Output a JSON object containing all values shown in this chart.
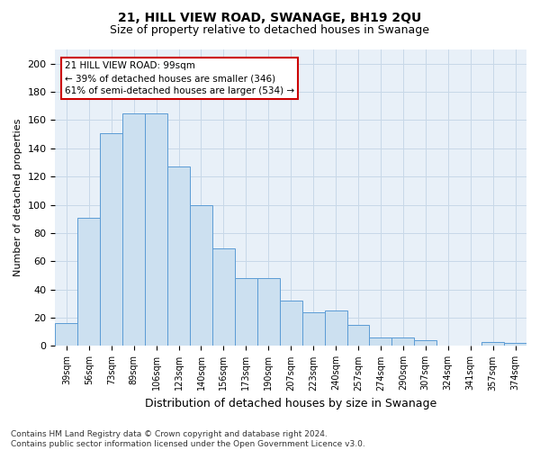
{
  "title1": "21, HILL VIEW ROAD, SWANAGE, BH19 2QU",
  "title2": "Size of property relative to detached houses in Swanage",
  "xlabel": "Distribution of detached houses by size in Swanage",
  "ylabel": "Number of detached properties",
  "footnote1": "Contains HM Land Registry data © Crown copyright and database right 2024.",
  "footnote2": "Contains public sector information licensed under the Open Government Licence v3.0.",
  "categories": [
    "39sqm",
    "56sqm",
    "73sqm",
    "89sqm",
    "106sqm",
    "123sqm",
    "140sqm",
    "156sqm",
    "173sqm",
    "190sqm",
    "207sqm",
    "223sqm",
    "240sqm",
    "257sqm",
    "274sqm",
    "290sqm",
    "307sqm",
    "324sqm",
    "341sqm",
    "357sqm",
    "374sqm"
  ],
  "values": [
    16,
    91,
    151,
    165,
    165,
    127,
    100,
    69,
    48,
    48,
    32,
    24,
    25,
    15,
    6,
    6,
    4,
    0,
    0,
    3,
    2
  ],
  "bar_face_color": "#cce0f0",
  "bar_edge_color": "#5b9bd5",
  "annotation_text1": "21 HILL VIEW ROAD: 99sqm",
  "annotation_text2": "← 39% of detached houses are smaller (346)",
  "annotation_text3": "61% of semi-detached houses are larger (534) →",
  "annotation_box_color": "#ffffff",
  "annotation_box_edge": "#cc0000",
  "ylim": [
    0,
    210
  ],
  "yticks": [
    0,
    20,
    40,
    60,
    80,
    100,
    120,
    140,
    160,
    180,
    200
  ],
  "grid_color": "#c8d8e8",
  "bg_color": "#e8f0f8",
  "fig_bg_color": "#ffffff",
  "title1_fontsize": 10,
  "title2_fontsize": 9,
  "ylabel_fontsize": 8,
  "xlabel_fontsize": 9,
  "tick_fontsize": 8,
  "xtick_fontsize": 7,
  "footnote_fontsize": 6.5
}
